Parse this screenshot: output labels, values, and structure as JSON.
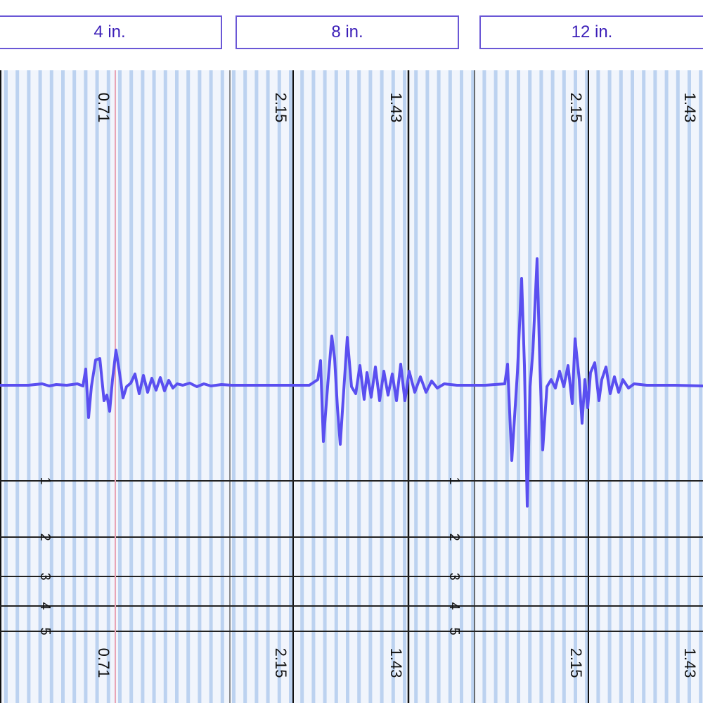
{
  "tabs": [
    {
      "label": "4 in."
    },
    {
      "label": "8 in."
    },
    {
      "label": "12 in."
    }
  ],
  "top_labels": [
    "0.71",
    "2.15",
    "1.43",
    "2.15",
    "1.43"
  ],
  "bottom_labels": [
    "0.71",
    "2.15",
    "1.43",
    "2.15",
    "1.43"
  ],
  "depth_marks_left": [
    "1",
    "2",
    "3",
    "4",
    "5"
  ],
  "depth_marks_right": [
    "1",
    "2",
    "3",
    "4",
    "5"
  ],
  "colors": {
    "tab_border": "#6a57d6",
    "tab_text": "#3c1fb8",
    "grid_stripe": "#bcd2f0",
    "waveform": "#5a4ff0",
    "cursor_line": "#e8a3b6"
  }
}
